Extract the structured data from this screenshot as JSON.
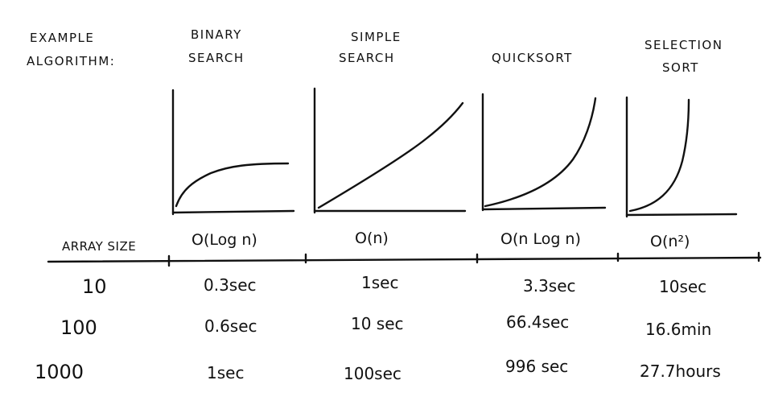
{
  "header": {
    "label_line1": "EXAMPLE",
    "label_line2": "ALGORITHM:"
  },
  "columns": [
    {
      "name_line1": "BINARY",
      "name_line2": "SEARCH",
      "big_o": "O(Log n)",
      "times": [
        "0.3sec",
        "0.6sec",
        "1sec"
      ],
      "growth": "logarithmic"
    },
    {
      "name_line1": "SIMPLE",
      "name_line2": "SEARCH",
      "big_o": "O(n)",
      "times": [
        "1sec",
        "10 sec",
        "100sec"
      ],
      "growth": "linear"
    },
    {
      "name_line1": "",
      "name_line2": "QUICKSORT",
      "big_o": "O(n Log n)",
      "times": [
        "3.3sec",
        "66.4sec",
        "996 sec"
      ],
      "growth": "linearithmic"
    },
    {
      "name_line1": "SELECTION",
      "name_line2": "SORT",
      "big_o": "O(n²)",
      "times": [
        "10sec",
        "16.6min",
        "27.7hours"
      ],
      "growth": "quadratic"
    }
  ],
  "array_size_label": "ARRAY SIZE",
  "array_sizes": [
    "10",
    "100",
    "1000"
  ]
}
